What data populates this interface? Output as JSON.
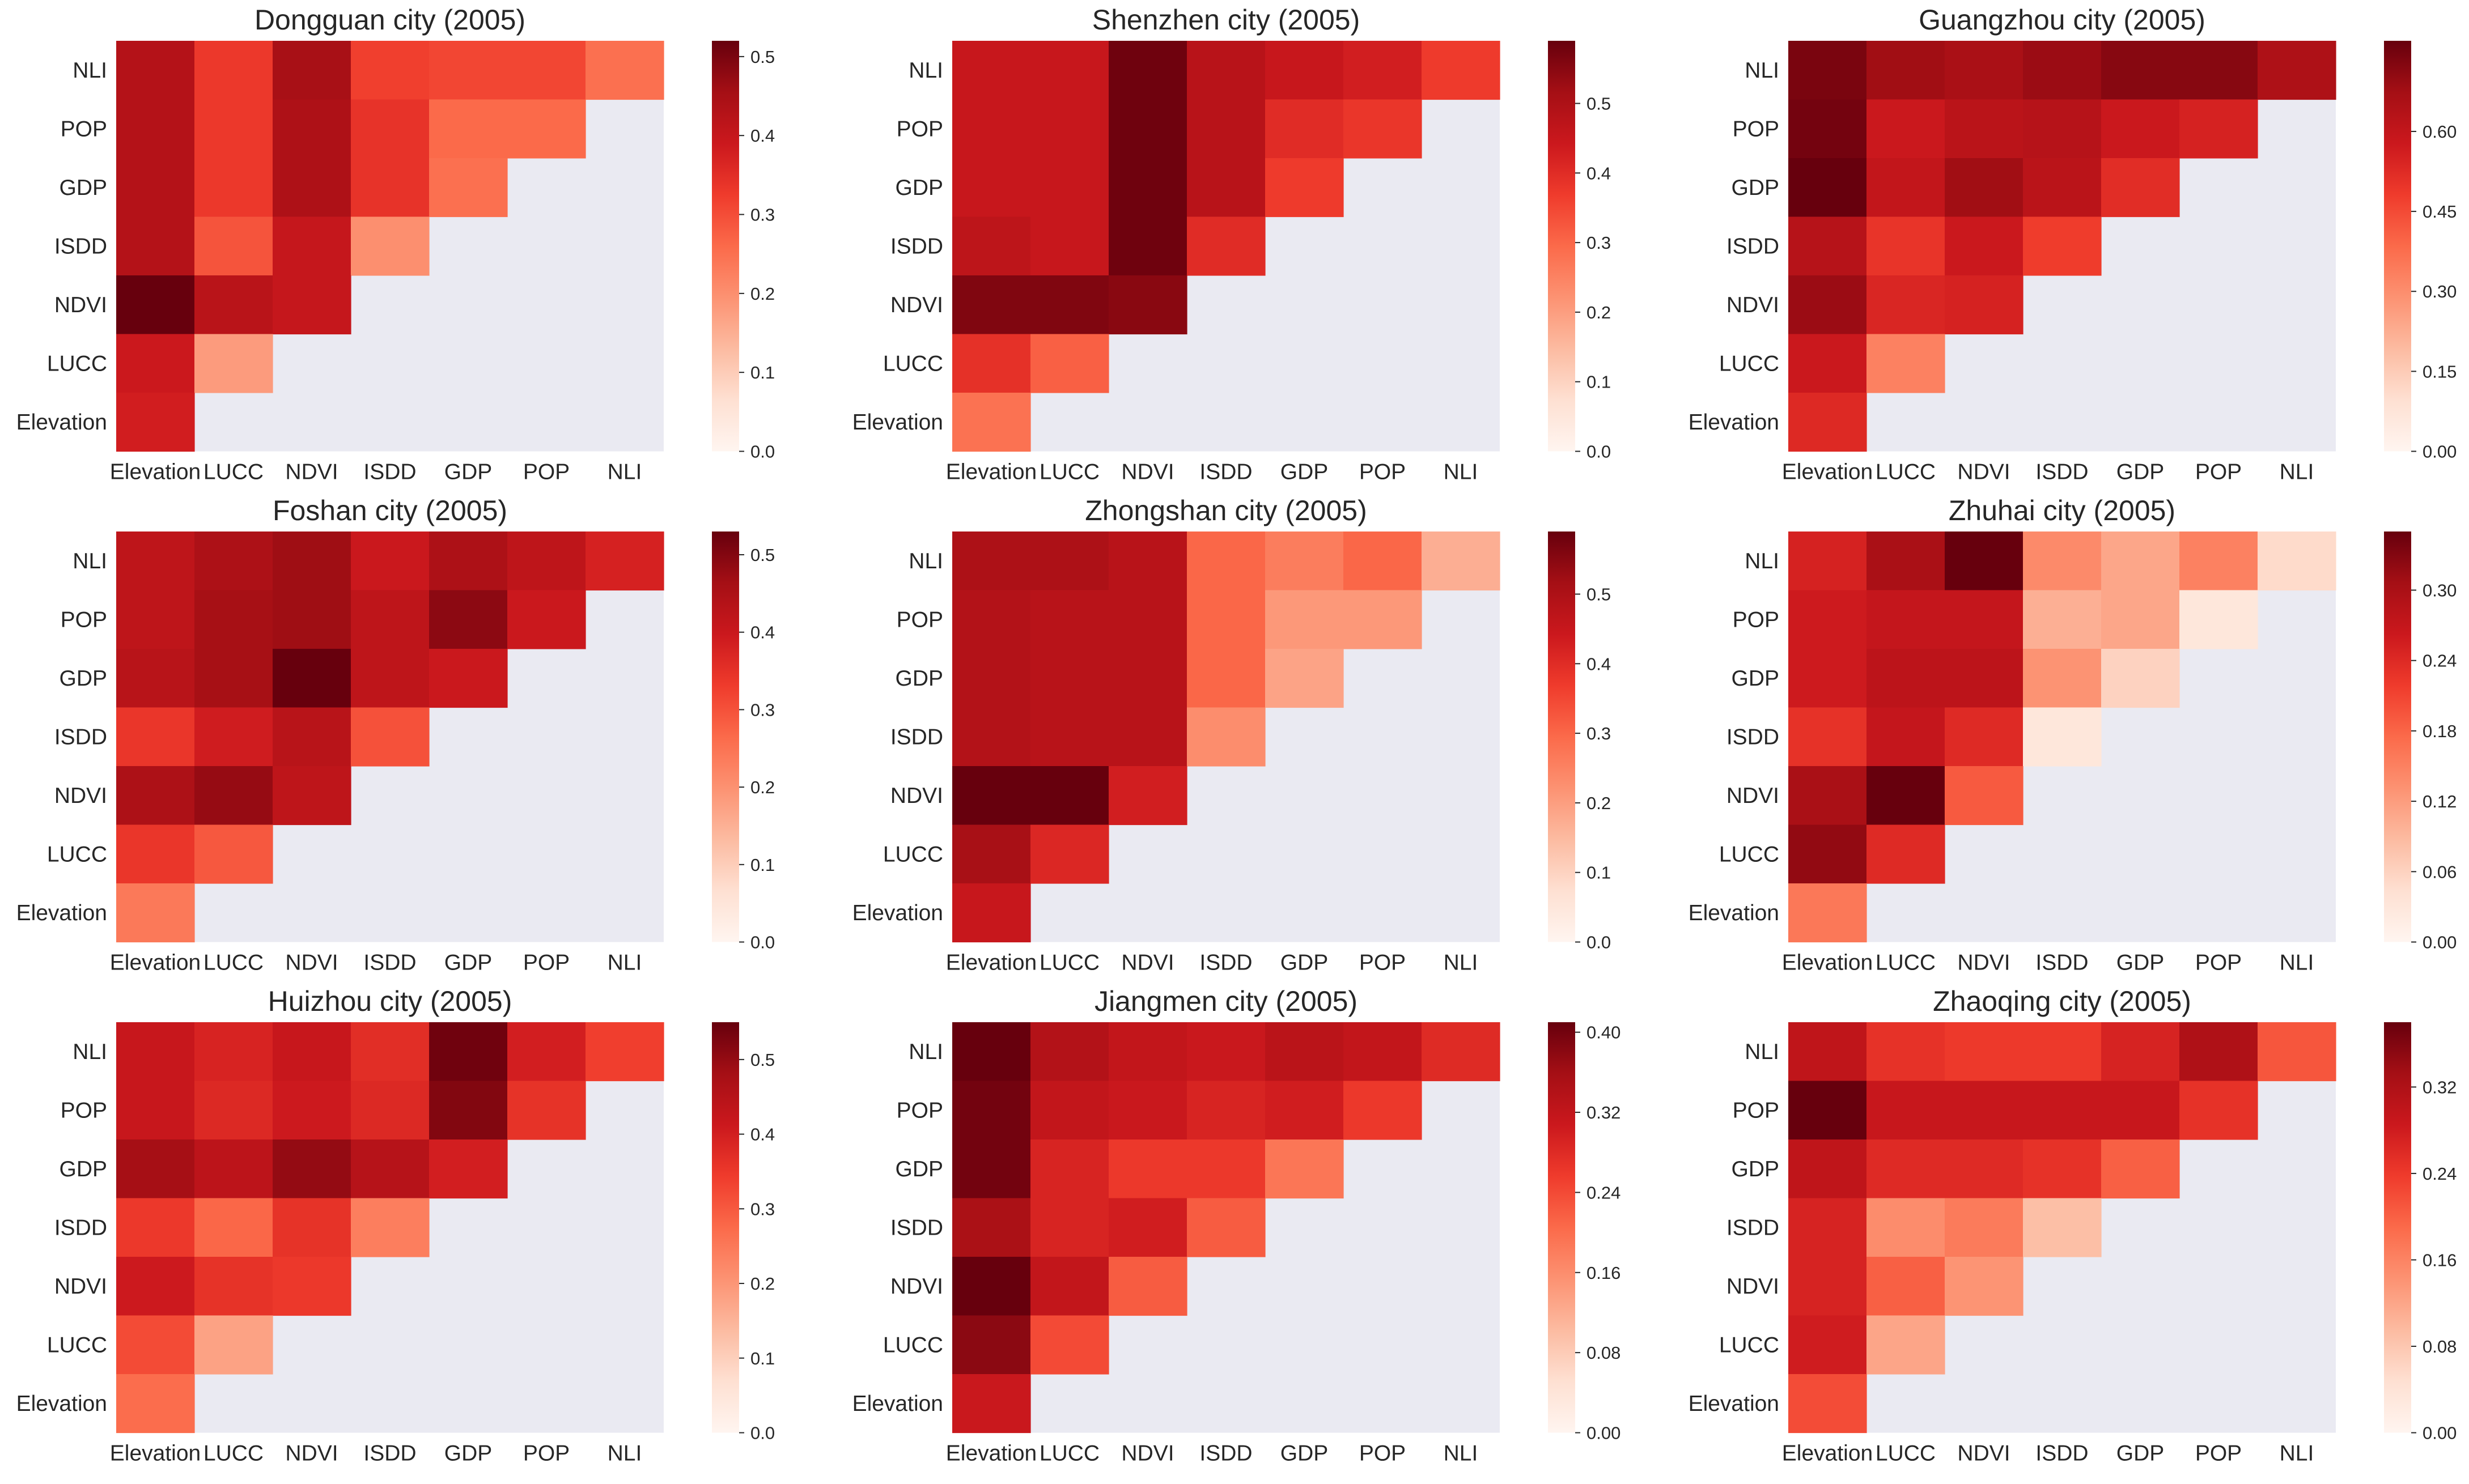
{
  "figure": {
    "colors": {
      "background": "#eaeaf2",
      "text": "#262626",
      "colormap": [
        "#fff5f0",
        "#fee0d2",
        "#fcbba1",
        "#fc9272",
        "#fb6a4a",
        "#ef3b2c",
        "#cb181d",
        "#a50f15",
        "#67000d"
      ]
    }
  },
  "chart_data": [
    {
      "type": "heatmap",
      "title": "Dongguan city (2005)",
      "rows": [
        "NLI",
        "POP",
        "GDP",
        "ISDD",
        "NDVI",
        "LUCC",
        "Elevation"
      ],
      "columns": [
        "Elevation",
        "LUCC",
        "NDVI",
        "ISDD",
        "GDP",
        "POP",
        "NLI"
      ],
      "values": [
        [
          0.43,
          0.33,
          0.45,
          0.32,
          0.31,
          0.31,
          0.25
        ],
        [
          0.43,
          0.33,
          0.44,
          0.34,
          0.26,
          0.26,
          null
        ],
        [
          0.43,
          0.33,
          0.44,
          0.34,
          0.25,
          null,
          null
        ],
        [
          0.43,
          0.29,
          0.4,
          0.2,
          null,
          null,
          null
        ],
        [
          0.52,
          0.42,
          0.4,
          null,
          null,
          null,
          null
        ],
        [
          0.39,
          0.18,
          null,
          null,
          null,
          null,
          null
        ],
        [
          0.38,
          null,
          null,
          null,
          null,
          null,
          null
        ]
      ],
      "vmin": 0.0,
      "vmax": 0.52,
      "colorbar_ticks": [
        "0.0",
        "0.1",
        "0.2",
        "0.3",
        "0.4",
        "0.5"
      ]
    },
    {
      "type": "heatmap",
      "title": "Shenzhen city (2005)",
      "rows": [
        "NLI",
        "POP",
        "GDP",
        "ISDD",
        "NDVI",
        "LUCC",
        "Elevation"
      ],
      "columns": [
        "Elevation",
        "LUCC",
        "NDVI",
        "ISDD",
        "GDP",
        "POP",
        "NLI"
      ],
      "values": [
        [
          0.45,
          0.45,
          0.58,
          0.48,
          0.45,
          0.43,
          0.37
        ],
        [
          0.45,
          0.45,
          0.58,
          0.48,
          0.4,
          0.38,
          null
        ],
        [
          0.45,
          0.45,
          0.58,
          0.48,
          0.37,
          null,
          null
        ],
        [
          0.47,
          0.45,
          0.58,
          0.4,
          null,
          null,
          null
        ],
        [
          0.56,
          0.56,
          0.55,
          null,
          null,
          null,
          null
        ],
        [
          0.39,
          0.31,
          null,
          null,
          null,
          null,
          null
        ],
        [
          0.28,
          null,
          null,
          null,
          null,
          null,
          null
        ]
      ],
      "vmin": 0.0,
      "vmax": 0.59,
      "colorbar_ticks": [
        "0.0",
        "0.1",
        "0.2",
        "0.3",
        "0.4",
        "0.5"
      ]
    },
    {
      "type": "heatmap",
      "title": "Guangzhou city (2005)",
      "rows": [
        "NLI",
        "POP",
        "GDP",
        "ISDD",
        "NDVI",
        "LUCC",
        "Elevation"
      ],
      "columns": [
        "Elevation",
        "LUCC",
        "NDVI",
        "ISDD",
        "GDP",
        "POP",
        "NLI"
      ],
      "values": [
        [
          0.74,
          0.68,
          0.66,
          0.69,
          0.72,
          0.72,
          0.65
        ],
        [
          0.75,
          0.58,
          0.62,
          0.63,
          0.58,
          0.55,
          null
        ],
        [
          0.77,
          0.6,
          0.68,
          0.62,
          0.52,
          null,
          null
        ],
        [
          0.63,
          0.5,
          0.58,
          0.48,
          null,
          null,
          null
        ],
        [
          0.69,
          0.54,
          0.55,
          null,
          null,
          null,
          null
        ],
        [
          0.58,
          0.33,
          null,
          null,
          null,
          null,
          null
        ],
        [
          0.53,
          null,
          null,
          null,
          null,
          null,
          null
        ]
      ],
      "vmin": 0.0,
      "vmax": 0.77,
      "colorbar_ticks": [
        "0.00",
        "0.15",
        "0.30",
        "0.45",
        "0.60"
      ]
    },
    {
      "type": "heatmap",
      "title": "Foshan city (2005)",
      "rows": [
        "NLI",
        "POP",
        "GDP",
        "ISDD",
        "NDVI",
        "LUCC",
        "Elevation"
      ],
      "columns": [
        "Elevation",
        "LUCC",
        "NDVI",
        "ISDD",
        "GDP",
        "POP",
        "NLI"
      ],
      "values": [
        [
          0.42,
          0.45,
          0.47,
          0.4,
          0.45,
          0.42,
          0.38
        ],
        [
          0.42,
          0.46,
          0.47,
          0.42,
          0.49,
          0.4,
          null
        ],
        [
          0.43,
          0.46,
          0.53,
          0.42,
          0.4,
          null,
          null
        ],
        [
          0.34,
          0.39,
          0.43,
          0.3,
          null,
          null,
          null
        ],
        [
          0.45,
          0.48,
          0.42,
          null,
          null,
          null,
          null
        ],
        [
          0.34,
          0.29,
          null,
          null,
          null,
          null,
          null
        ],
        [
          0.24,
          null,
          null,
          null,
          null,
          null,
          null
        ]
      ],
      "vmin": 0.0,
      "vmax": 0.53,
      "colorbar_ticks": [
        "0.0",
        "0.1",
        "0.2",
        "0.3",
        "0.4",
        "0.5"
      ]
    },
    {
      "type": "heatmap",
      "title": "Zhongshan city (2005)",
      "rows": [
        "NLI",
        "POP",
        "GDP",
        "ISDD",
        "NDVI",
        "LUCC",
        "Elevation"
      ],
      "columns": [
        "Elevation",
        "LUCC",
        "NDVI",
        "ISDD",
        "GDP",
        "POP",
        "NLI"
      ],
      "values": [
        [
          0.5,
          0.5,
          0.48,
          0.3,
          0.26,
          0.3,
          0.17
        ],
        [
          0.49,
          0.48,
          0.48,
          0.3,
          0.21,
          0.21,
          null
        ],
        [
          0.49,
          0.48,
          0.48,
          0.3,
          0.19,
          null,
          null
        ],
        [
          0.49,
          0.48,
          0.48,
          0.23,
          null,
          null,
          null
        ],
        [
          0.59,
          0.59,
          0.43,
          null,
          null,
          null,
          null
        ],
        [
          0.51,
          0.41,
          null,
          null,
          null,
          null,
          null
        ],
        [
          0.45,
          null,
          null,
          null,
          null,
          null,
          null
        ]
      ],
      "vmin": 0.0,
      "vmax": 0.59,
      "colorbar_ticks": [
        "0.0",
        "0.1",
        "0.2",
        "0.3",
        "0.4",
        "0.5"
      ]
    },
    {
      "type": "heatmap",
      "title": "Zhuhai city (2005)",
      "rows": [
        "NLI",
        "POP",
        "GDP",
        "ISDD",
        "NDVI",
        "LUCC",
        "Elevation"
      ],
      "columns": [
        "Elevation",
        "LUCC",
        "NDVI",
        "ISDD",
        "GDP",
        "POP",
        "NLI"
      ],
      "values": [
        [
          0.25,
          0.3,
          0.35,
          0.14,
          0.11,
          0.15,
          0.05
        ],
        [
          0.26,
          0.27,
          0.27,
          0.1,
          0.11,
          0.03,
          null
        ],
        [
          0.26,
          0.28,
          0.28,
          0.13,
          0.06,
          null,
          null
        ],
        [
          0.23,
          0.27,
          0.24,
          0.03,
          null,
          null,
          null
        ],
        [
          0.3,
          0.35,
          0.19,
          null,
          null,
          null,
          null
        ],
        [
          0.32,
          0.24,
          null,
          null,
          null,
          null,
          null
        ],
        [
          0.16,
          null,
          null,
          null,
          null,
          null,
          null
        ]
      ],
      "vmin": 0.0,
      "vmax": 0.35,
      "colorbar_ticks": [
        "0.00",
        "0.06",
        "0.12",
        "0.18",
        "0.24",
        "0.30"
      ]
    },
    {
      "type": "heatmap",
      "title": "Huizhou city (2005)",
      "rows": [
        "NLI",
        "POP",
        "GDP",
        "ISDD",
        "NDVI",
        "LUCC",
        "Elevation"
      ],
      "columns": [
        "Elevation",
        "LUCC",
        "NDVI",
        "ISDD",
        "GDP",
        "POP",
        "NLI"
      ],
      "values": [
        [
          0.42,
          0.39,
          0.42,
          0.37,
          0.54,
          0.4,
          0.34
        ],
        [
          0.42,
          0.38,
          0.41,
          0.38,
          0.52,
          0.36,
          null
        ],
        [
          0.48,
          0.44,
          0.5,
          0.45,
          0.4,
          null,
          null
        ],
        [
          0.35,
          0.28,
          0.36,
          0.24,
          null,
          null,
          null
        ],
        [
          0.41,
          0.36,
          0.35,
          null,
          null,
          null,
          null
        ],
        [
          0.32,
          0.18,
          null,
          null,
          null,
          null,
          null
        ],
        [
          0.27,
          null,
          null,
          null,
          null,
          null,
          null
        ]
      ],
      "vmin": 0.0,
      "vmax": 0.55,
      "colorbar_ticks": [
        "0.0",
        "0.1",
        "0.2",
        "0.3",
        "0.4",
        "0.5"
      ]
    },
    {
      "type": "heatmap",
      "title": "Jiangmen city (2005)",
      "rows": [
        "NLI",
        "POP",
        "GDP",
        "ISDD",
        "NDVI",
        "LUCC",
        "Elevation"
      ],
      "columns": [
        "Elevation",
        "LUCC",
        "NDVI",
        "ISDD",
        "GDP",
        "POP",
        "NLI"
      ],
      "values": [
        [
          0.41,
          0.34,
          0.32,
          0.31,
          0.33,
          0.32,
          0.28
        ],
        [
          0.4,
          0.32,
          0.31,
          0.29,
          0.3,
          0.26,
          null
        ],
        [
          0.4,
          0.29,
          0.26,
          0.26,
          0.19,
          null,
          null
        ],
        [
          0.35,
          0.29,
          0.3,
          0.22,
          null,
          null,
          null
        ],
        [
          0.41,
          0.32,
          0.22,
          null,
          null,
          null,
          null
        ],
        [
          0.38,
          0.24,
          null,
          null,
          null,
          null,
          null
        ],
        [
          0.31,
          null,
          null,
          null,
          null,
          null,
          null
        ]
      ],
      "vmin": 0.0,
      "vmax": 0.41,
      "colorbar_ticks": [
        "0.00",
        "0.08",
        "0.16",
        "0.24",
        "0.32",
        "0.40"
      ]
    },
    {
      "type": "heatmap",
      "title": "Zhaoqing city (2005)",
      "rows": [
        "NLI",
        "POP",
        "GDP",
        "ISDD",
        "NDVI",
        "LUCC",
        "Elevation"
      ],
      "columns": [
        "Elevation",
        "LUCC",
        "NDVI",
        "ISDD",
        "GDP",
        "POP",
        "NLI"
      ],
      "values": [
        [
          0.3,
          0.25,
          0.24,
          0.24,
          0.27,
          0.32,
          0.21
        ],
        [
          0.38,
          0.29,
          0.29,
          0.29,
          0.29,
          0.25,
          null
        ],
        [
          0.3,
          0.26,
          0.26,
          0.25,
          0.2,
          null,
          null
        ],
        [
          0.27,
          0.15,
          0.17,
          0.09,
          null,
          null,
          null
        ],
        [
          0.27,
          0.2,
          0.14,
          null,
          null,
          null,
          null
        ],
        [
          0.28,
          0.12,
          null,
          null,
          null,
          null,
          null
        ],
        [
          0.22,
          null,
          null,
          null,
          null,
          null,
          null
        ]
      ],
      "vmin": 0.0,
      "vmax": 0.38,
      "colorbar_ticks": [
        "0.00",
        "0.08",
        "0.16",
        "0.24",
        "0.32"
      ]
    }
  ]
}
